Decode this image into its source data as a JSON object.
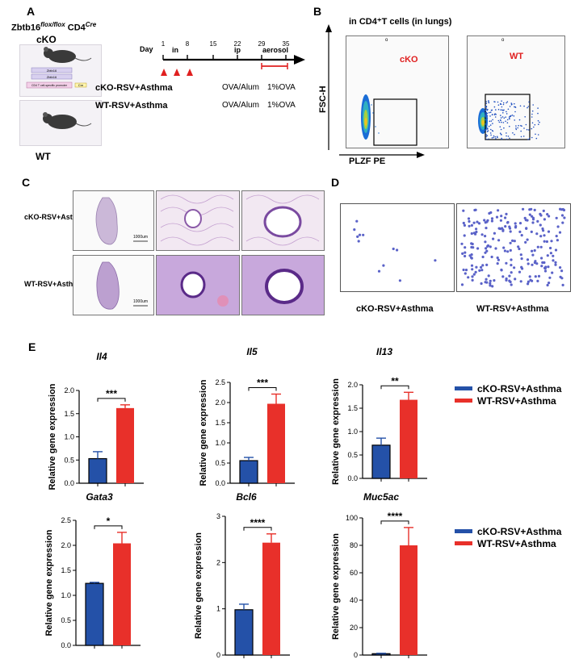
{
  "panelA": {
    "label": "A",
    "genotype_main": "Zbtb16",
    "genotype_sup1": "flox/flox",
    "genotype_cd4": " CD4",
    "genotype_sup2": "Cre",
    "cko_label": "cKO",
    "wt_label": "WT",
    "construct_line1": "Zbtb16",
    "construct_line2": "Zbtb16",
    "construct_promoter": "CD4 T cell-specific promoter",
    "construct_cre": "Cre",
    "timeline": {
      "day_label": "Day",
      "days": [
        "1",
        "8",
        "15",
        "22",
        "29",
        "35"
      ],
      "phase_in": "in",
      "phase_ip": "ip",
      "phase_aerosol": "aerosol"
    },
    "groups": [
      {
        "name": "cKO-RSV+Asthma",
        "col1": "OVA/Alum",
        "col2": "1%OVA"
      },
      {
        "name": "WT-RSV+Asthma",
        "col1": "OVA/Alum",
        "col2": "1%OVA"
      }
    ]
  },
  "panelB": {
    "label": "B",
    "title": "in CD4⁺T cells (in lungs)",
    "ylabel": "FSC-H",
    "xlabel": "PLZF PE",
    "left_label": "cKO",
    "right_label": "WT",
    "top_mark_left": "o",
    "top_mark_right": "o"
  },
  "panelC": {
    "label": "C",
    "row1": "cKO-RSV+Asthma",
    "row2": "WT-RSV+Asthma",
    "scale1": "1000um",
    "scale2": "1000um"
  },
  "panelD": {
    "label": "D",
    "left": "cKO-RSV+Asthma",
    "right": "WT-RSV+Asthma"
  },
  "panelE": {
    "label": "E",
    "legend": [
      {
        "name": "cKO-RSV+Asthma",
        "color": "#2451a8"
      },
      {
        "name": "WT-RSV+Asthma",
        "color": "#e8302a"
      }
    ]
  },
  "chart_data": [
    {
      "type": "bar",
      "title": "Il4",
      "ylabel": "Relative gene expression",
      "categories": [
        "cKO-RSV+Asthma",
        "WT-RSV+Asthma"
      ],
      "values": [
        0.53,
        1.62
      ],
      "errors": [
        0.15,
        0.07
      ],
      "ylim": [
        0,
        2.0
      ],
      "yticks": [
        "0.0",
        "0.5",
        "1.0",
        "1.5",
        "2.0"
      ],
      "tickvals": [
        0,
        0.5,
        1.0,
        1.5,
        2.0
      ],
      "significance": "***"
    },
    {
      "type": "bar",
      "title": "Il5",
      "ylabel": "Relative gene expression",
      "categories": [
        "cKO-RSV+Asthma",
        "WT-RSV+Asthma"
      ],
      "values": [
        0.56,
        1.97
      ],
      "errors": [
        0.08,
        0.24
      ],
      "ylim": [
        0,
        2.5
      ],
      "yticks": [
        "0.0",
        "0.5",
        "1.0",
        "1.5",
        "2.0",
        "2.5"
      ],
      "tickvals": [
        0,
        0.5,
        1.0,
        1.5,
        2.0,
        2.5
      ],
      "significance": "***"
    },
    {
      "type": "bar",
      "title": "Il13",
      "ylabel": "Relative gene expression",
      "categories": [
        "cKO-RSV+Asthma",
        "WT-RSV+Asthma"
      ],
      "values": [
        0.71,
        1.68
      ],
      "errors": [
        0.15,
        0.16
      ],
      "ylim": [
        0,
        2.0
      ],
      "yticks": [
        "0.0",
        "0.5",
        "1.0",
        "1.5",
        "2.0"
      ],
      "tickvals": [
        0,
        0.5,
        1.0,
        1.5,
        2.0
      ],
      "significance": "**"
    },
    {
      "type": "bar",
      "title": "Gata3",
      "ylabel": "Relative gene expression",
      "categories": [
        "cKO-RSV+Asthma",
        "WT-RSV+Asthma"
      ],
      "values": [
        1.24,
        2.04
      ],
      "errors": [
        0.02,
        0.22
      ],
      "ylim": [
        0,
        2.5
      ],
      "yticks": [
        "0.0",
        "0.5",
        "1.0",
        "1.5",
        "2.0",
        "2.5"
      ],
      "tickvals": [
        0,
        0.5,
        1.0,
        1.5,
        2.0,
        2.5
      ],
      "significance": "*"
    },
    {
      "type": "bar",
      "title": "Bcl6",
      "ylabel": "Relative gene expression",
      "categories": [
        "cKO-RSV+Asthma",
        "WT-RSV+Asthma"
      ],
      "values": [
        0.98,
        2.43
      ],
      "errors": [
        0.12,
        0.19
      ],
      "ylim": [
        0,
        3
      ],
      "yticks": [
        "0",
        "1",
        "2",
        "3"
      ],
      "tickvals": [
        0,
        1,
        2,
        3
      ],
      "significance": "****"
    },
    {
      "type": "bar",
      "title": "Muc5ac",
      "ylabel": "Relative gene expression",
      "categories": [
        "cKO-RSV+Asthma",
        "WT-RSV+Asthma"
      ],
      "values": [
        1.0,
        80
      ],
      "errors": [
        0.3,
        13
      ],
      "ylim": [
        0,
        100
      ],
      "yticks": [
        "0",
        "20",
        "40",
        "60",
        "80",
        "100"
      ],
      "tickvals": [
        0,
        20,
        40,
        60,
        80,
        100
      ],
      "significance": "****"
    }
  ]
}
